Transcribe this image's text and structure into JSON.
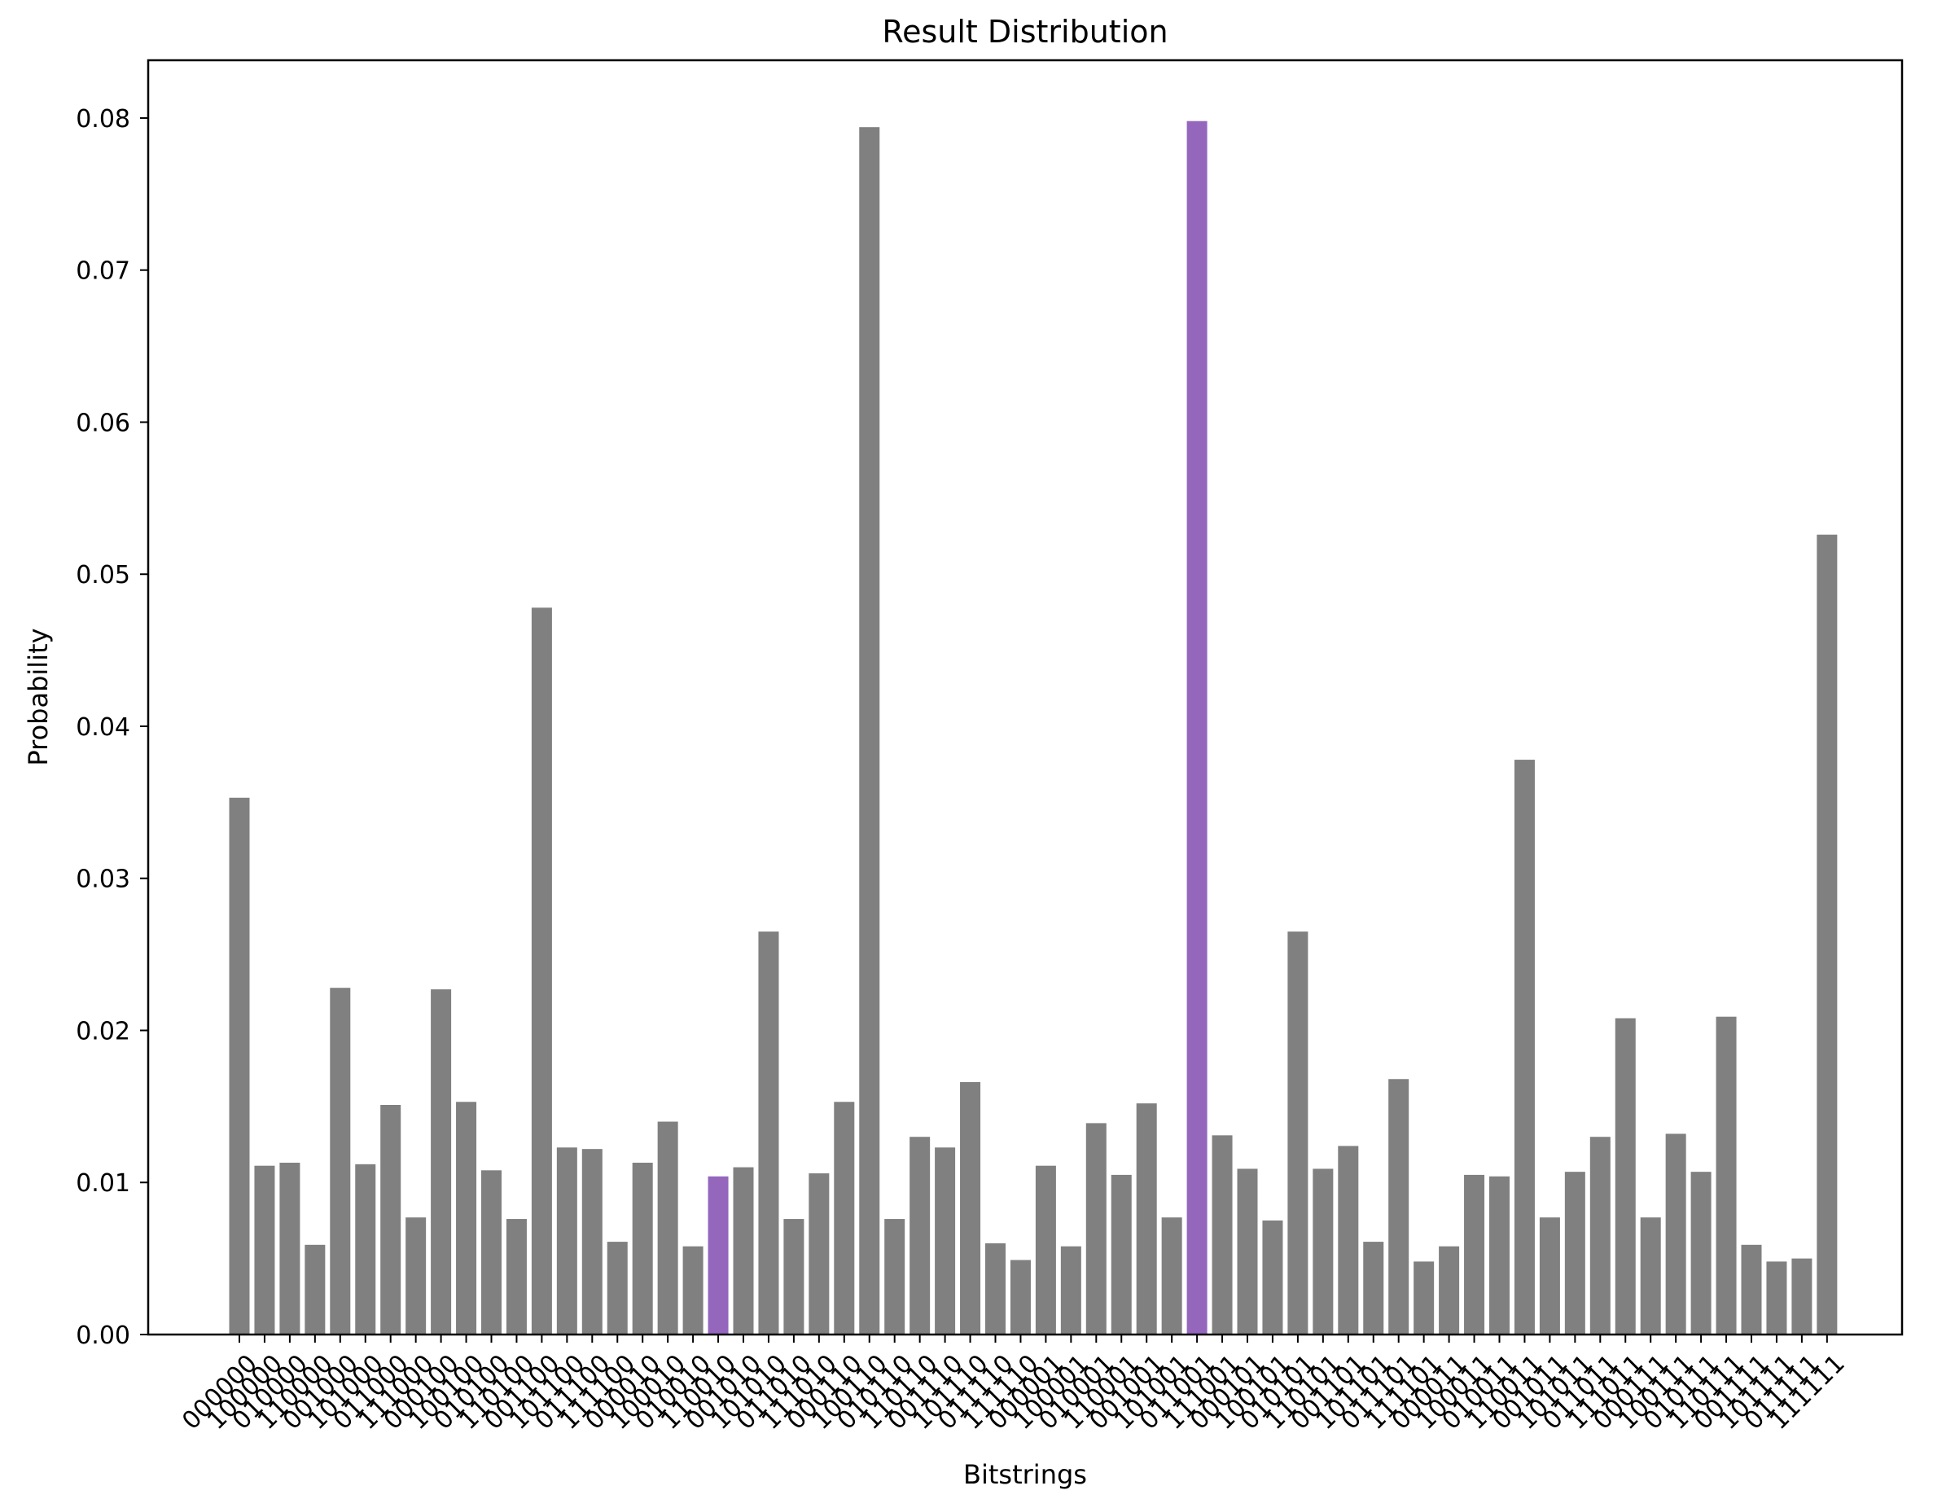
{
  "chart_data": {
    "type": "bar",
    "title": "Result Distribution",
    "xlabel": "Bitstrings",
    "ylabel": "Probability",
    "ylim": [
      0,
      0.0838
    ],
    "yticks": [
      0.0,
      0.01,
      0.02,
      0.03,
      0.04,
      0.05,
      0.06,
      0.07,
      0.08
    ],
    "ytick_labels": [
      "0.00",
      "0.01",
      "0.02",
      "0.03",
      "0.04",
      "0.05",
      "0.06",
      "0.07",
      "0.08"
    ],
    "grid": false,
    "legend": "none",
    "colors": {
      "default": "#808080",
      "highlight": "#9467bd"
    },
    "categories": [
      "000000",
      "100000",
      "010000",
      "110000",
      "001000",
      "101000",
      "011000",
      "111000",
      "000100",
      "100100",
      "010100",
      "110100",
      "001100",
      "101100",
      "011100",
      "111100",
      "000010",
      "100010",
      "010010",
      "110010",
      "001010",
      "101010",
      "011010",
      "111010",
      "000110",
      "100110",
      "010110",
      "110110",
      "001110",
      "101110",
      "011110",
      "111110",
      "000001",
      "100001",
      "010001",
      "110001",
      "001001",
      "101001",
      "011001",
      "111001",
      "000101",
      "100101",
      "010101",
      "110101",
      "001101",
      "101101",
      "011101",
      "111101",
      "000011",
      "100011",
      "010011",
      "110011",
      "001011",
      "101011",
      "011011",
      "111011",
      "000111",
      "100111",
      "010111",
      "110111",
      "001111",
      "101111",
      "011111",
      "111111"
    ],
    "values": [
      0.0353,
      0.0111,
      0.0113,
      0.0059,
      0.0228,
      0.0112,
      0.0151,
      0.0077,
      0.0227,
      0.0153,
      0.0108,
      0.0076,
      0.0478,
      0.0123,
      0.0122,
      0.0061,
      0.0113,
      0.014,
      0.0058,
      0.0104,
      0.011,
      0.0265,
      0.0076,
      0.0106,
      0.0153,
      0.0794,
      0.0076,
      0.013,
      0.0123,
      0.0166,
      0.006,
      0.0049,
      0.0111,
      0.0058,
      0.0139,
      0.0105,
      0.0152,
      0.0077,
      0.0798,
      0.0131,
      0.0109,
      0.0075,
      0.0265,
      0.0109,
      0.0124,
      0.0061,
      0.0168,
      0.0048,
      0.0058,
      0.0105,
      0.0104,
      0.0378,
      0.0077,
      0.0107,
      0.013,
      0.0208,
      0.0077,
      0.0132,
      0.0107,
      0.0209,
      0.0059,
      0.0048,
      0.005,
      0.0526
    ],
    "highlighted": [
      "110010",
      "011001"
    ]
  }
}
